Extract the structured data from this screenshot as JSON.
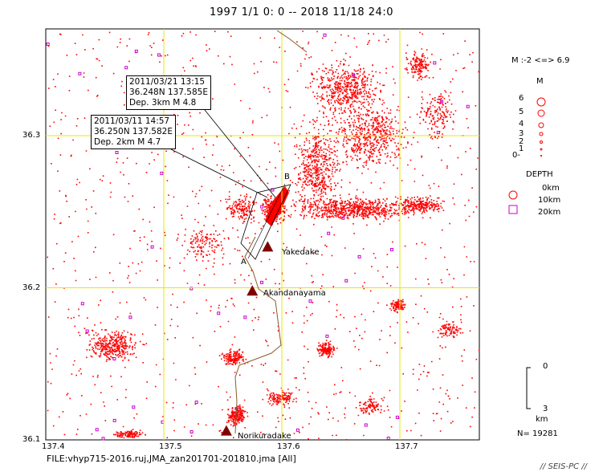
{
  "title": "1997 1/1 0: 0 -- 2018 11/18 24:0",
  "file_label": "FILE:vhyp715-2016.ruj,JMA_zan201701-201810.jma [All]",
  "credit": "// SEIS-PC //",
  "axes": {
    "lon_ticks": [
      "137.4",
      "137.5",
      "137.6",
      "137.7"
    ],
    "lat_ticks": [
      "36.3",
      "36.2",
      "36.1"
    ]
  },
  "volcanoes": [
    {
      "name": "Yakedake",
      "lon": 137.588,
      "lat": 36.227
    },
    {
      "name": "Akandanayama",
      "lon": 137.575,
      "lat": 36.198
    },
    {
      "name": "Norikuradake",
      "lon": 137.553,
      "lat": 36.106
    }
  ],
  "profile": {
    "a_label": "A",
    "b_label": "B"
  },
  "callouts": [
    {
      "line1": "2011/03/21 13:15",
      "line2": "36.248N  137.585E",
      "line3": "Dep. 3km    M 4.8"
    },
    {
      "line1": "2011/03/11 14:57",
      "line2": "36.250N  137.582E",
      "line3": "Dep. 2km    M 4.7"
    }
  ],
  "legend": {
    "mag_range": "M :-2 <=> 6.9",
    "mag_title": "M",
    "mag_levels": [
      "6",
      "5",
      "4",
      "3",
      "2",
      "1",
      "0-"
    ],
    "depth_title": "DEPTH",
    "depth_levels": [
      "0km",
      "10km",
      "20km"
    ],
    "scale_top": "0",
    "scale_bottom": "3",
    "scale_unit": "km",
    "count": "N= 19281"
  },
  "colors": {
    "shallow": "#ff0000",
    "deep": "#cc00cc",
    "grid": "#e8e800",
    "volcano": "#800000",
    "road": "#8b5a2b"
  }
}
